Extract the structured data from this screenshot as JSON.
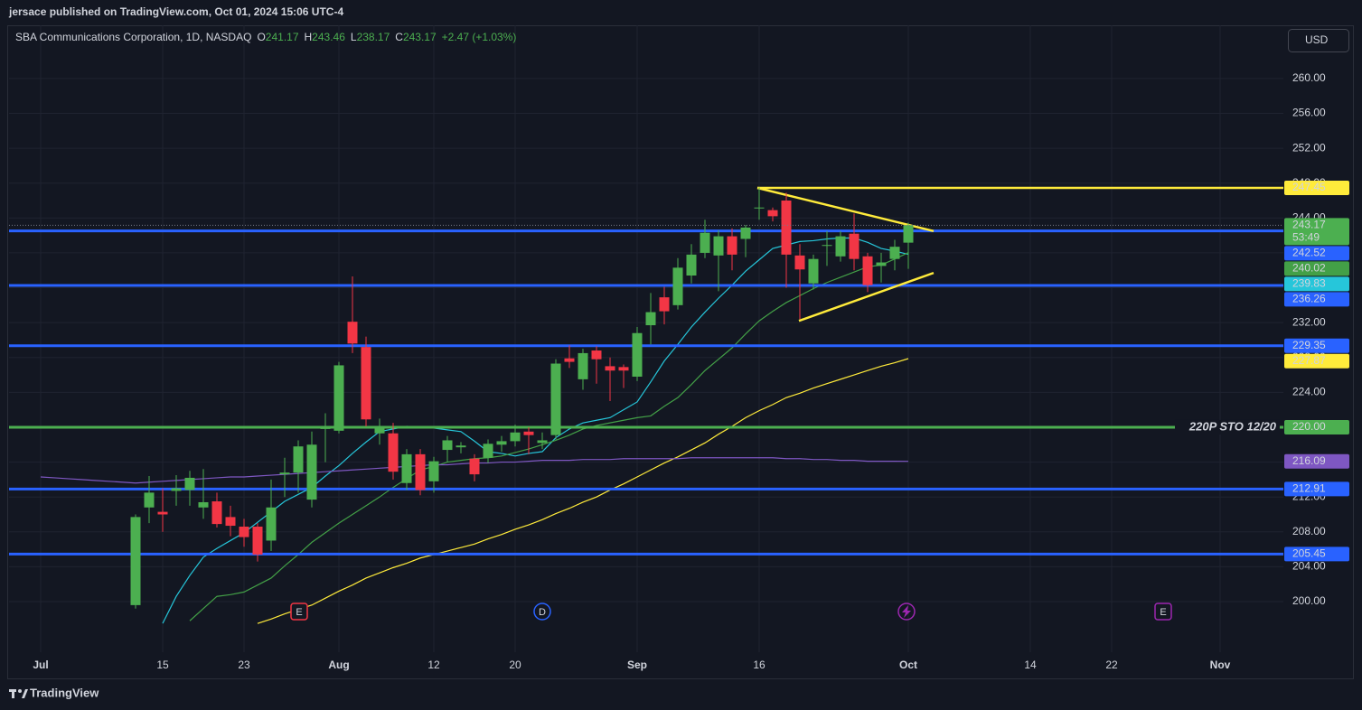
{
  "header": {
    "published": "jersace published on TradingView.com, Oct 01, 2024 15:06 UTC-4"
  },
  "legend": {
    "symbol": "SBA Communications Corporation, 1D, NASDAQ",
    "keys": [
      "O",
      "H",
      "L",
      "C"
    ],
    "change": "+2.47 (+1.03%)"
  },
  "currency": "USD",
  "brand": "TradingView",
  "chart_data": {
    "type": "candlestick",
    "categories": [
      "Jul",
      null,
      null,
      null,
      null,
      null,
      null,
      null,
      null,
      "15",
      null,
      null,
      null,
      null,
      null,
      "23",
      null,
      null,
      null,
      null,
      null,
      null,
      "Aug",
      null,
      null,
      null,
      null,
      null,
      null,
      "12",
      null,
      null,
      null,
      null,
      null,
      "20",
      null,
      null,
      null,
      null,
      null,
      null,
      null,
      null,
      "Sep",
      null,
      null,
      null,
      null,
      null,
      null,
      null,
      null,
      "16",
      null,
      null,
      null,
      null,
      null,
      null,
      null,
      null,
      null,
      null,
      "Oct",
      null,
      null,
      null,
      null,
      null,
      null,
      null,
      null,
      "14",
      null,
      null,
      null,
      null,
      null,
      "22",
      null,
      null,
      null,
      null,
      null,
      null,
      null,
      "Nov",
      null,
      null,
      null,
      null
    ],
    "open": [
      null,
      null,
      null,
      null,
      null,
      null,
      null,
      199.6,
      210.8,
      210.3,
      212.7,
      212.8,
      210.8,
      211.5,
      209.7,
      208.6,
      208.6,
      207.0,
      214.6,
      214.8,
      211.7,
      219.8,
      219.6,
      232.1,
      229.2,
      219.3,
      219.3,
      213.6,
      216.9,
      213.8,
      217.4,
      217.7,
      216.4,
      216.5,
      218,
      218.4,
      219.5,
      218.2,
      219.1,
      227.9,
      225.5,
      228.8,
      227,
      226.9,
      225.8,
      231.7,
      234.9,
      234,
      237.4,
      240,
      239.7,
      241.9,
      241.6,
      245.1,
      244.9,
      246,
      239.7,
      236.5,
      240.8,
      239.6,
      242.2,
      239.6,
      238.5,
      239.3,
      241.17,
      null,
      null,
      null,
      null,
      null,
      null,
      null,
      null,
      null,
      null,
      null,
      null,
      null,
      null,
      null,
      null,
      null,
      null,
      null,
      null,
      null,
      null,
      null,
      null,
      null,
      null,
      null
    ],
    "high": [
      null,
      null,
      null,
      null,
      null,
      null,
      null,
      210,
      214.4,
      213,
      214.5,
      215,
      215.2,
      212.5,
      211,
      209.5,
      209,
      214,
      216.5,
      218.5,
      219.5,
      221.6,
      227.5,
      237.3,
      230.4,
      221,
      220.5,
      217.5,
      217.5,
      216.6,
      219,
      218.3,
      216.9,
      218.6,
      219,
      220.3,
      220,
      219.4,
      227.8,
      229.4,
      229,
      229.3,
      228,
      227.2,
      231.5,
      235.4,
      236.1,
      239.4,
      241,
      243.8,
      242.6,
      242.8,
      243.2,
      247.5,
      245.2,
      246.9,
      241,
      239.8,
      242.5,
      242.5,
      244.5,
      240,
      240,
      241.5,
      243.46,
      null,
      null,
      null,
      null,
      null,
      null,
      null,
      null,
      null,
      null,
      null,
      null,
      null,
      null,
      null,
      null,
      null,
      null,
      null,
      null,
      null,
      null,
      null,
      null,
      null,
      null,
      null
    ],
    "low": [
      null,
      null,
      null,
      null,
      null,
      null,
      null,
      199.2,
      209,
      208,
      211,
      211,
      209.5,
      208.5,
      207.5,
      206.3,
      204.6,
      205.8,
      212,
      212.5,
      210.8,
      216,
      219.3,
      228.5,
      220.1,
      218,
      214,
      212.8,
      212.2,
      212.5,
      216,
      217,
      213.8,
      215.9,
      217.2,
      217.8,
      216.9,
      217.5,
      218.6,
      226.8,
      224.3,
      225,
      223,
      224.5,
      225.3,
      229.5,
      231.8,
      233.5,
      236.5,
      239.4,
      235.6,
      238,
      239.5,
      243.8,
      243.6,
      236,
      232.4,
      235.8,
      238.5,
      239,
      238,
      235.5,
      236.6,
      238,
      238.17,
      null,
      null,
      null,
      null,
      null,
      null,
      null,
      null,
      null,
      null,
      null,
      null,
      null,
      null,
      null,
      null,
      null,
      null,
      null,
      null,
      null,
      null,
      null,
      null,
      null,
      null,
      null
    ],
    "close": [
      null,
      null,
      null,
      null,
      null,
      null,
      null,
      209.7,
      212.5,
      210.0,
      213.0,
      214.2,
      211.4,
      208.9,
      208.7,
      207.4,
      205.4,
      210.8,
      214.8,
      217.8,
      218,
      220.1,
      227.1,
      229.6,
      220.9,
      220.1,
      214.9,
      216.9,
      212.8,
      216.1,
      218.5,
      217.9,
      214.6,
      218.1,
      218.4,
      219.4,
      219.1,
      218.5,
      227.3,
      227.5,
      228.5,
      227.8,
      226.5,
      226.5,
      230.8,
      233.2,
      233.3,
      238.3,
      239.8,
      242.3,
      241.9,
      239.8,
      242.9,
      245.2,
      244.2,
      239.8,
      238.1,
      239.3,
      240.9,
      241.9,
      239.3,
      236.3,
      238.9,
      240.7,
      243.17,
      null,
      null,
      null,
      null,
      null,
      null,
      null,
      null,
      null,
      null,
      null,
      null,
      null,
      null,
      null,
      null,
      null,
      null,
      null,
      null,
      null,
      null,
      null,
      null,
      null,
      null,
      null
    ],
    "up_color": "#4caf50",
    "down_color": "#f23645",
    "countdown": "53:49",
    "series": [
      {
        "color": "#26c6da",
        "values": [
          null,
          null,
          null,
          null,
          null,
          null,
          null,
          null,
          null,
          197.5,
          200.6,
          203,
          205.1,
          206.1,
          207,
          207.9,
          209.1,
          210.3,
          211.5,
          212.3,
          213.1,
          214.4,
          215.6,
          217,
          218.3,
          219.5,
          219.8,
          220.1,
          220,
          219.9,
          219.7,
          219.5,
          218.4,
          217.2,
          217,
          216.7,
          217,
          217.2,
          218.8,
          219.8,
          220.5,
          220.8,
          221.1,
          222,
          222.9,
          225.2,
          227.6,
          229.5,
          231.5,
          233.2,
          234.8,
          236.3,
          237.9,
          239.2,
          240.5,
          240.9,
          241.3,
          241.4,
          241.6,
          241.7,
          241.7,
          241.2,
          240.5,
          240.2,
          239.83,
          null,
          null,
          null,
          null,
          null,
          null,
          null,
          null,
          null,
          null,
          null,
          null,
          null,
          null,
          null,
          null,
          null,
          null,
          null,
          null,
          null,
          null,
          null,
          null,
          null,
          null,
          null
        ]
      },
      {
        "color": "#43a047",
        "values": [
          null,
          null,
          null,
          null,
          null,
          null,
          null,
          null,
          null,
          null,
          null,
          197.8,
          199.2,
          200.6,
          200.8,
          201.1,
          201.9,
          202.7,
          204.1,
          205.4,
          206.8,
          207.9,
          209,
          210,
          211,
          212,
          213.1,
          214.1,
          215.1,
          215.5,
          216,
          216.2,
          216.4,
          216.5,
          216.7,
          217.1,
          217.5,
          218,
          218.5,
          219.1,
          219.8,
          220.2,
          220.5,
          220.8,
          221.1,
          221.3,
          222.4,
          223.4,
          224.9,
          226.5,
          227.8,
          229.1,
          230.7,
          232.2,
          233.3,
          234.3,
          235.1,
          235.9,
          236.6,
          237.2,
          237.8,
          238.4,
          238.6,
          239.3,
          240.02,
          null,
          null,
          null,
          null,
          null,
          null,
          null,
          null,
          null,
          null,
          null,
          null,
          null,
          null,
          null,
          null,
          null,
          null,
          null,
          null,
          null,
          null,
          null,
          null,
          null,
          null,
          null
        ]
      },
      {
        "color": "#ffeb3b",
        "values": [
          null,
          null,
          null,
          null,
          null,
          null,
          null,
          null,
          null,
          null,
          null,
          null,
          null,
          null,
          null,
          null,
          197.5,
          198,
          198.6,
          199.1,
          199.6,
          200.4,
          201.2,
          201.9,
          202.7,
          203.3,
          203.9,
          204.4,
          205,
          205.4,
          205.8,
          206.2,
          206.6,
          207.2,
          207.7,
          208.3,
          208.8,
          209.4,
          210.1,
          210.7,
          211.4,
          212,
          212.8,
          213.5,
          214.3,
          215.1,
          215.9,
          216.6,
          217.4,
          218.2,
          219.2,
          220.1,
          221.1,
          221.9,
          222.6,
          223.4,
          223.9,
          224.5,
          225,
          225.5,
          226,
          226.5,
          227,
          227.4,
          227.87,
          null,
          null,
          null,
          null,
          null,
          null,
          null,
          null,
          null,
          null,
          null,
          null,
          null,
          null,
          null,
          null,
          null,
          null,
          null,
          null,
          null,
          null,
          null,
          null,
          null,
          null,
          null
        ]
      },
      {
        "color": "#7e57c2",
        "values": [
          214.3,
          214.2,
          214.1,
          214,
          213.9,
          213.8,
          213.7,
          213.6,
          213.7,
          213.8,
          213.9,
          214,
          214.1,
          214.2,
          214.3,
          214.3,
          214.4,
          214.5,
          214.6,
          214.7,
          214.8,
          214.9,
          215,
          215.1,
          215.2,
          215.3,
          215.4,
          215.5,
          215.6,
          215.7,
          215.7,
          215.8,
          215.9,
          215.9,
          216,
          216,
          216.1,
          216.2,
          216.2,
          216.2,
          216.3,
          216.3,
          216.3,
          216.4,
          216.4,
          216.4,
          216.4,
          216.4,
          216.5,
          216.5,
          216.5,
          216.5,
          216.5,
          216.5,
          216.5,
          216.4,
          216.4,
          216.3,
          216.3,
          216.2,
          216.2,
          216.1,
          216.1,
          216.1,
          216.09,
          null,
          null,
          null,
          null,
          null,
          null,
          null,
          null,
          null,
          null,
          null,
          null,
          null,
          null,
          null,
          null,
          null,
          null,
          null,
          null,
          null,
          null,
          null,
          null,
          null,
          null,
          null
        ]
      }
    ],
    "levels": [
      {
        "value": 247.45,
        "color": "#ffeb3b"
      },
      {
        "value": 242.52,
        "color": "#2962ff"
      },
      {
        "value": 236.26,
        "color": "#2962ff"
      },
      {
        "value": 229.35,
        "color": "#2962ff"
      },
      {
        "value": 220,
        "label": "220.00",
        "color": "#4caf50",
        "text": "220P STO 12/20"
      },
      {
        "value": 212.91,
        "color": "#2962ff"
      },
      {
        "value": 205.45,
        "color": "#2962ff"
      }
    ],
    "trendlines": [
      {
        "values": [
          247.45,
          242.5
        ],
        "color": "#ffeb3b"
      },
      {
        "values": [
          232.2,
          237.7
        ],
        "color": "#ffeb3b"
      }
    ],
    "events": [
      {
        "label": "E",
        "color": "#f23645"
      },
      {
        "label": "D",
        "color": "#2962ff"
      },
      {
        "label": "E",
        "color": "#9c27b0"
      }
    ],
    "ylim": [
      194.2,
      266.1
    ],
    "yticks": [
      {
        "value": 200,
        "label": "200.00"
      },
      {
        "value": 204,
        "label": "204.00"
      },
      {
        "value": 208,
        "label": "208.00"
      },
      {
        "value": 212,
        "label": "212.00"
      },
      {
        "value": 216,
        "label": "216.00"
      },
      {
        "value": 220,
        "label": "220.00"
      },
      {
        "value": 224,
        "label": "224.00"
      },
      {
        "value": 228,
        "label": "228.00"
      },
      {
        "value": 232,
        "label": "232.00"
      },
      {
        "value": 236,
        "label": "236.00"
      },
      {
        "value": 240,
        "label": "240.00"
      },
      {
        "value": 244,
        "label": "244.00"
      },
      {
        "value": 248,
        "label": "248.00"
      },
      {
        "value": 252,
        "label": "252.00"
      },
      {
        "value": 256,
        "label": "256.00"
      },
      {
        "value": 260,
        "label": "260.00"
      }
    ],
    "grid": true
  }
}
